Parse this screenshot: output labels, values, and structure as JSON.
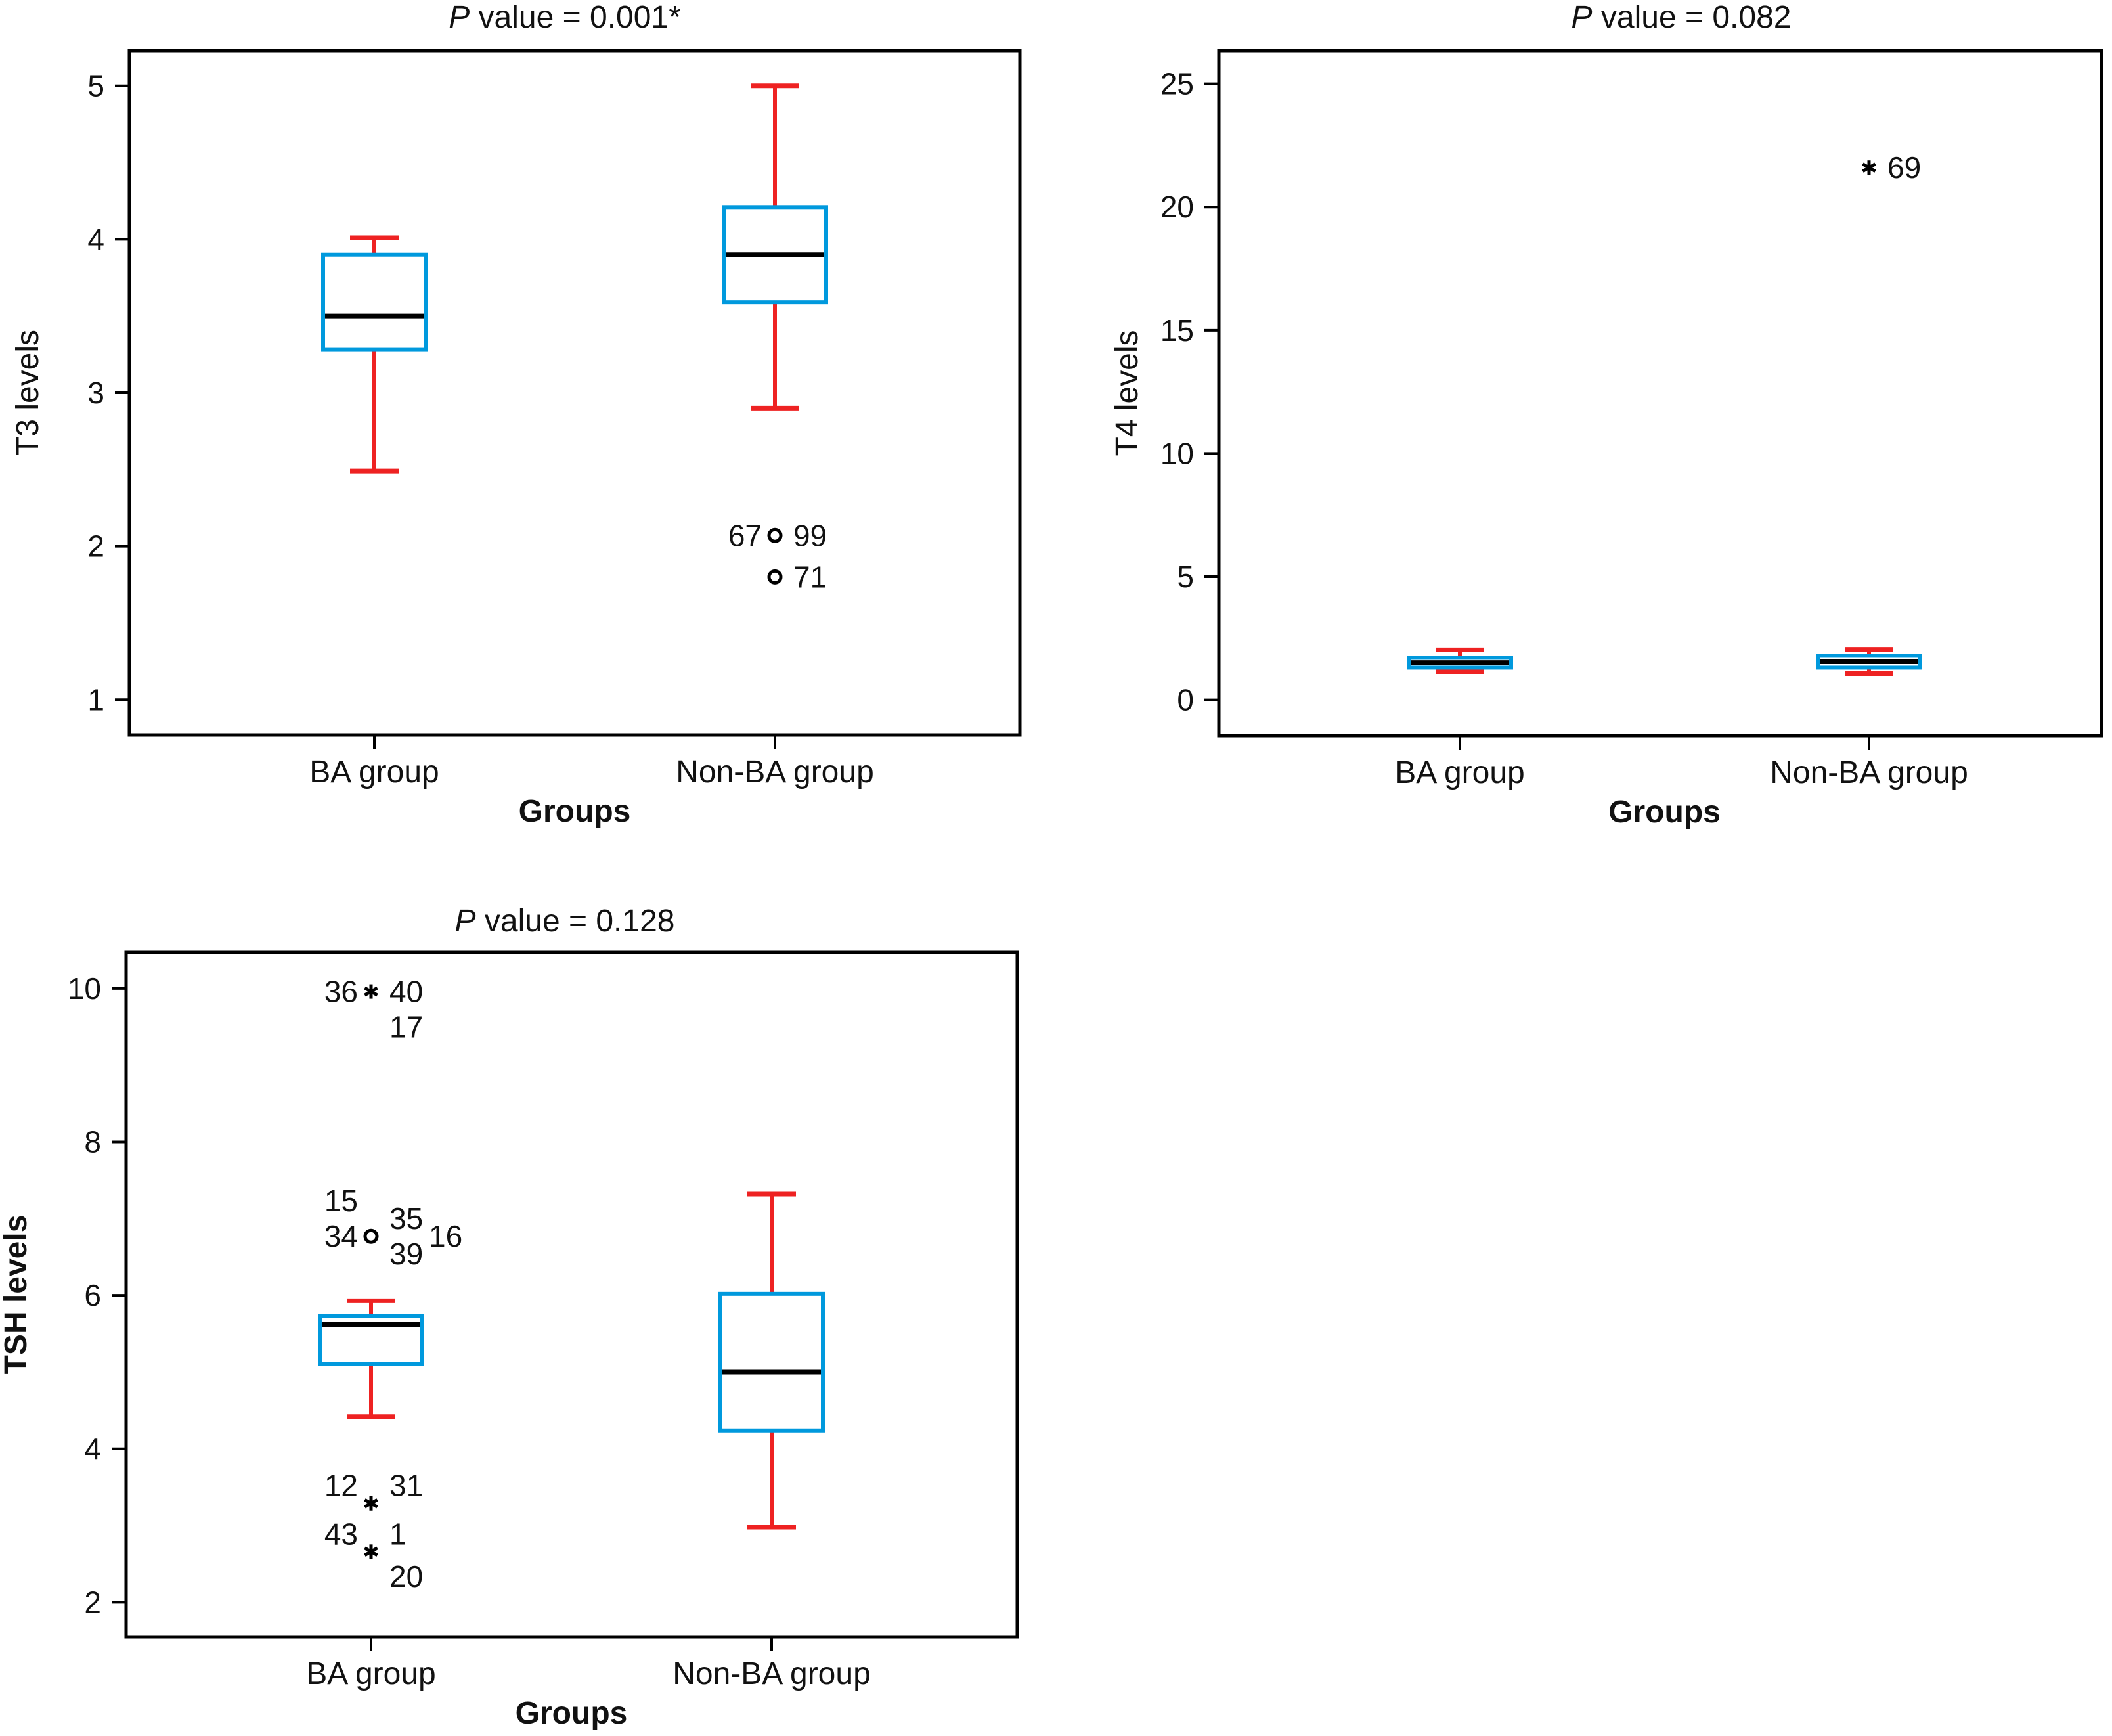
{
  "colors": {
    "box": "#0099dd",
    "whisker": "#ee2222",
    "median": "#000000",
    "frame": "#000000"
  },
  "chart_data": [
    {
      "id": "t3",
      "type": "box",
      "title_prefix": "P",
      "title": " value = 0.001*",
      "xlabel": "Groups",
      "ylabel": "T3 levels",
      "ylabel_bold": false,
      "xlabel_bold": true,
      "ylim": [
        0.77,
        5.23
      ],
      "yticks": [
        1,
        2,
        3,
        4,
        5
      ],
      "categories": [
        "BA group",
        "Non-BA group"
      ],
      "boxes": [
        {
          "group": "BA group",
          "whisker_low": 2.49,
          "q1": 3.28,
          "median": 3.5,
          "q3": 3.9,
          "whisker_high": 4.01,
          "outliers": []
        },
        {
          "group": "Non-BA group",
          "whisker_low": 2.9,
          "q1": 3.59,
          "median": 3.9,
          "q3": 4.21,
          "whisker_high": 5.0,
          "outliers": [
            {
              "value": 2.07,
              "marker": "circle",
              "labels": [
                {
                  "text": "67",
                  "side": "left",
                  "row": 0
                },
                {
                  "text": "99",
                  "side": "right",
                  "row": 0
                }
              ]
            },
            {
              "value": 1.8,
              "marker": "circle",
              "labels": [
                {
                  "text": "71",
                  "side": "right",
                  "row": 0
                }
              ]
            }
          ]
        }
      ]
    },
    {
      "id": "t4",
      "type": "box",
      "title_prefix": "P",
      "title": " value = 0.082",
      "xlabel": "Groups",
      "ylabel": "T4 levels",
      "ylabel_bold": false,
      "xlabel_bold": true,
      "ylim": [
        -1.45,
        26.35
      ],
      "yticks": [
        0,
        5,
        10,
        15,
        20,
        25
      ],
      "categories": [
        "BA group",
        "Non-BA group"
      ],
      "boxes": [
        {
          "group": "BA group",
          "whisker_low": 1.15,
          "q1": 1.31,
          "median": 1.52,
          "q3": 1.71,
          "whisker_high": 2.03,
          "outliers": []
        },
        {
          "group": "Non-BA group",
          "whisker_low": 1.07,
          "q1": 1.31,
          "median": 1.55,
          "q3": 1.79,
          "whisker_high": 2.05,
          "outliers": [
            {
              "value": 21.6,
              "marker": "star",
              "labels": [
                {
                  "text": "69",
                  "side": "right",
                  "row": 0
                }
              ]
            }
          ]
        }
      ]
    },
    {
      "id": "tsh",
      "type": "box",
      "title_prefix": "P",
      "title": " value = 0.128",
      "xlabel": "Groups",
      "ylabel": "TSH levels",
      "ylabel_bold": true,
      "xlabel_bold": true,
      "ylim": [
        1.55,
        10.47
      ],
      "yticks": [
        2,
        4,
        6,
        8,
        10
      ],
      "categories": [
        "BA group",
        "Non-BA group"
      ],
      "boxes": [
        {
          "group": "BA group",
          "whisker_low": 4.42,
          "q1": 5.11,
          "median": 5.62,
          "q3": 5.73,
          "whisker_high": 5.93,
          "outliers": [
            {
              "value": 9.96,
              "marker": "star",
              "labels": [
                {
                  "text": "36",
                  "side": "left",
                  "row": 0
                },
                {
                  "text": "40",
                  "side": "right",
                  "row": 0
                },
                {
                  "text": "17",
                  "side": "right",
                  "row": 1
                }
              ]
            },
            {
              "value": 6.77,
              "marker": "circle",
              "labels": [
                {
                  "text": "15",
                  "side": "left",
                  "row": -1
                },
                {
                  "text": "34",
                  "side": "left",
                  "row": 0
                },
                {
                  "text": "35",
                  "side": "right",
                  "row": -0.5
                },
                {
                  "text": "39",
                  "side": "right",
                  "row": 0.5
                },
                {
                  "text": "16",
                  "side": "far-right",
                  "row": 0
                }
              ]
            },
            {
              "value": 3.29,
              "marker": "star",
              "labels": [
                {
                  "text": "12",
                  "side": "left",
                  "row": -0.5
                },
                {
                  "text": "31",
                  "side": "right",
                  "row": -0.5
                }
              ]
            },
            {
              "value": 2.66,
              "marker": "star",
              "labels": [
                {
                  "text": "43",
                  "side": "left",
                  "row": -0.5
                },
                {
                  "text": "1",
                  "side": "right",
                  "row": -0.5
                },
                {
                  "text": "20",
                  "side": "right",
                  "row": 0.7
                }
              ]
            }
          ]
        },
        {
          "group": "Non-BA group",
          "whisker_low": 2.98,
          "q1": 4.24,
          "median": 5.0,
          "q3": 6.02,
          "whisker_high": 7.32,
          "outliers": []
        }
      ]
    }
  ]
}
